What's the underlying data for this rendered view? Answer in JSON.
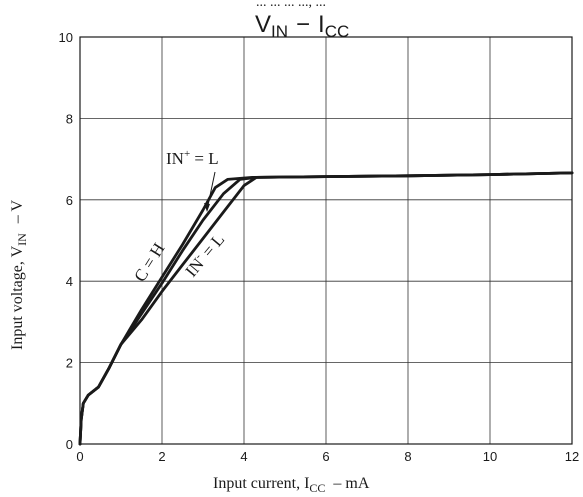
{
  "chart_data": {
    "type": "line",
    "title_top_fragment": "... ... ... ..., ...",
    "title_main": "V",
    "title_main_sub": "IN",
    "title_main_dash": "−",
    "title_main_I": "I",
    "title_main_I_sub": "CC",
    "xlabel_prefix": "Input current, I",
    "xlabel_sub": "CC",
    "xlabel_suffix": "–  mA",
    "ylabel_prefix": "Input voltage, V",
    "ylabel_sub": "IN",
    "ylabel_suffix": "–  V",
    "xlim": [
      0,
      12
    ],
    "ylim": [
      0,
      10
    ],
    "xticks": [
      0,
      2,
      4,
      6,
      8,
      10,
      12
    ],
    "yticks": [
      0,
      2,
      4,
      6,
      8,
      10
    ],
    "grid": true,
    "line_color": "#1a1a1a",
    "series": [
      {
        "name": "IN+ = L",
        "points": [
          [
            0,
            0
          ],
          [
            0.03,
            0.6
          ],
          [
            0.08,
            1.0
          ],
          [
            0.2,
            1.2
          ],
          [
            0.45,
            1.4
          ],
          [
            0.7,
            1.85
          ],
          [
            1.0,
            2.45
          ],
          [
            1.5,
            3.3
          ],
          [
            2.0,
            4.1
          ],
          [
            2.5,
            4.9
          ],
          [
            3.0,
            5.75
          ],
          [
            3.3,
            6.3
          ],
          [
            3.6,
            6.5
          ],
          [
            4.2,
            6.55
          ],
          [
            6,
            6.57
          ],
          [
            8,
            6.59
          ],
          [
            10,
            6.62
          ],
          [
            12,
            6.66
          ]
        ]
      },
      {
        "name": "C = H",
        "points": [
          [
            0,
            0
          ],
          [
            0.03,
            0.6
          ],
          [
            0.08,
            1.0
          ],
          [
            0.2,
            1.2
          ],
          [
            0.45,
            1.4
          ],
          [
            0.7,
            1.85
          ],
          [
            1.0,
            2.45
          ],
          [
            1.5,
            3.2
          ],
          [
            2.0,
            3.95
          ],
          [
            2.5,
            4.75
          ],
          [
            3.0,
            5.5
          ],
          [
            3.5,
            6.15
          ],
          [
            3.9,
            6.5
          ],
          [
            4.3,
            6.55
          ],
          [
            6,
            6.57
          ],
          [
            8,
            6.59
          ],
          [
            10,
            6.62
          ],
          [
            12,
            6.66
          ]
        ]
      },
      {
        "name": "IN- = L",
        "points": [
          [
            0,
            0
          ],
          [
            0.03,
            0.6
          ],
          [
            0.08,
            1.0
          ],
          [
            0.2,
            1.2
          ],
          [
            0.45,
            1.4
          ],
          [
            0.7,
            1.85
          ],
          [
            1.0,
            2.45
          ],
          [
            1.5,
            3.05
          ],
          [
            2.0,
            3.75
          ],
          [
            2.5,
            4.4
          ],
          [
            3.0,
            5.05
          ],
          [
            3.5,
            5.7
          ],
          [
            4.0,
            6.35
          ],
          [
            4.3,
            6.55
          ],
          [
            6,
            6.57
          ],
          [
            8,
            6.59
          ],
          [
            10,
            6.62
          ],
          [
            12,
            6.66
          ]
        ]
      }
    ],
    "annotations": [
      {
        "label": "IN",
        "sup": "+",
        "tail": " = L"
      },
      {
        "label": "C = H"
      },
      {
        "label": "IN",
        "sup": "-",
        "tail": " = L"
      }
    ]
  }
}
